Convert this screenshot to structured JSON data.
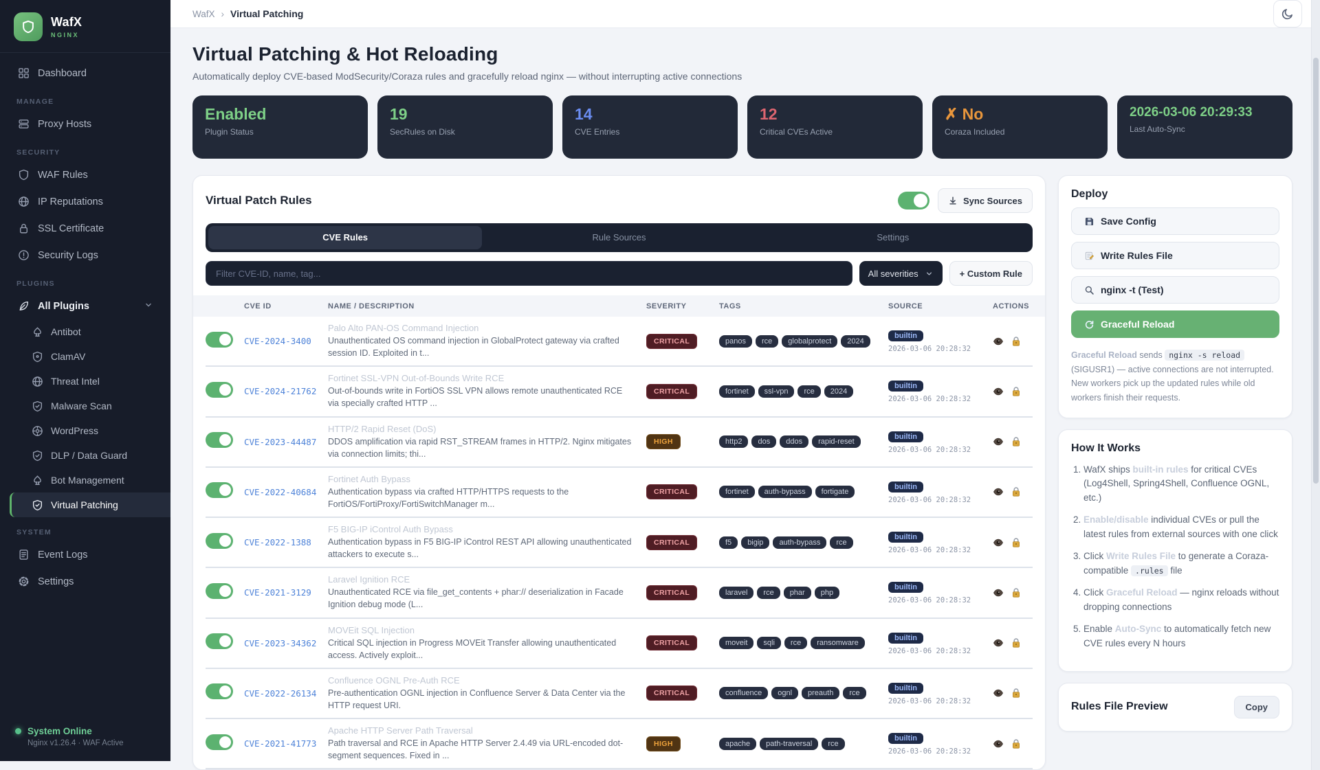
{
  "app": {
    "name": "WafX",
    "subtitle": "NGINX"
  },
  "topbar": {
    "breadcrumb": [
      "WafX",
      "Virtual Patching"
    ]
  },
  "sidebar": {
    "sections": [
      {
        "label": "",
        "items": [
          {
            "icon": "dashboard",
            "label": "Dashboard"
          }
        ]
      },
      {
        "label": "MANAGE",
        "items": [
          {
            "icon": "server",
            "label": "Proxy Hosts"
          }
        ]
      },
      {
        "label": "SECURITY",
        "items": [
          {
            "icon": "shield",
            "label": "WAF Rules"
          },
          {
            "icon": "globe",
            "label": "IP Reputations"
          },
          {
            "icon": "lock",
            "label": "SSL Certificate"
          },
          {
            "icon": "alert",
            "label": "Security Logs"
          }
        ]
      },
      {
        "label": "PLUGINS",
        "items": [
          {
            "icon": "feather",
            "label": "All Plugins",
            "parent": true,
            "chevron": true
          },
          {
            "icon": "spade",
            "label": "Antibot",
            "sub": true
          },
          {
            "icon": "shield-dot",
            "label": "ClamAV",
            "sub": true
          },
          {
            "icon": "globe",
            "label": "Threat Intel",
            "sub": true
          },
          {
            "icon": "shield-check",
            "label": "Malware Scan",
            "sub": true
          },
          {
            "icon": "target",
            "label": "WordPress",
            "sub": true
          },
          {
            "icon": "shield-check",
            "label": "DLP / Data Guard",
            "sub": true
          },
          {
            "icon": "spade",
            "label": "Bot Management",
            "sub": true
          },
          {
            "icon": "shield-check",
            "label": "Virtual Patching",
            "sub": true,
            "active": true
          }
        ]
      },
      {
        "label": "SYSTEM",
        "items": [
          {
            "icon": "doc",
            "label": "Event Logs"
          },
          {
            "icon": "gear",
            "label": "Settings"
          }
        ]
      }
    ],
    "status": {
      "title": "System Online",
      "subtitle": "Nginx v1.26.4 · WAF Active"
    }
  },
  "page": {
    "title": "Virtual Patching & Hot Reloading",
    "subtitle": "Automatically deploy CVE-based ModSecurity/Coraza rules and gracefully reload nginx — without interrupting active connections"
  },
  "stats": [
    {
      "value": "Enabled",
      "label": "Plugin Status",
      "color": "#7ed087"
    },
    {
      "value": "19",
      "label": "SecRules on Disk",
      "color": "#7ed087"
    },
    {
      "value": "14",
      "label": "CVE Entries",
      "color": "#6b8df2"
    },
    {
      "value": "12",
      "label": "Critical CVEs Active",
      "color": "#dd6570"
    },
    {
      "value": "✗ No",
      "label": "Coraza Included",
      "color": "#e8963c"
    },
    {
      "value": "2026-03-06 20:29:33",
      "label": "Last Auto-Sync",
      "color": "#7ed087",
      "small": true
    }
  ],
  "rules_panel": {
    "title": "Virtual Patch Rules",
    "enabled": true,
    "sync_button": "Sync Sources",
    "tabs": [
      {
        "label": "CVE Rules",
        "active": true
      },
      {
        "label": "Rule Sources",
        "active": false
      },
      {
        "label": "Settings",
        "active": false
      }
    ],
    "filter_placeholder": "Filter CVE-ID, name, tag...",
    "severity_select": "All severities",
    "custom_rule_button": "+ Custom Rule",
    "columns": [
      "CVE ID",
      "NAME / DESCRIPTION",
      "SEVERITY",
      "TAGS",
      "SOURCE",
      "ACTIONS"
    ],
    "rows": [
      {
        "enabled": true,
        "cve": "CVE-2024-3400",
        "name": "Palo Alto PAN-OS Command Injection",
        "description": "Unauthenticated OS command injection in GlobalProtect gateway via crafted session ID. Exploited in t...",
        "severity": "CRITICAL",
        "tags": [
          "panos",
          "rce",
          "globalprotect",
          "2024"
        ],
        "source": "builtin",
        "synced": "2026-03-06 20:28:32"
      },
      {
        "enabled": true,
        "cve": "CVE-2024-21762",
        "name": "Fortinet SSL-VPN Out-of-Bounds Write RCE",
        "description": "Out-of-bounds write in FortiOS SSL VPN allows remote unauthenticated RCE via specially crafted HTTP ...",
        "severity": "CRITICAL",
        "tags": [
          "fortinet",
          "ssl-vpn",
          "rce",
          "2024"
        ],
        "source": "builtin",
        "synced": "2026-03-06 20:28:32"
      },
      {
        "enabled": true,
        "cve": "CVE-2023-44487",
        "name": "HTTP/2 Rapid Reset (DoS)",
        "description": "DDOS amplification via rapid RST_STREAM frames in HTTP/2. Nginx mitigates via connection limits; thi...",
        "severity": "HIGH",
        "tags": [
          "http2",
          "dos",
          "ddos",
          "rapid-reset"
        ],
        "source": "builtin",
        "synced": "2026-03-06 20:28:32"
      },
      {
        "enabled": true,
        "cve": "CVE-2022-40684",
        "name": "Fortinet Auth Bypass",
        "description": "Authentication bypass via crafted HTTP/HTTPS requests to the FortiOS/FortiProxy/FortiSwitchManager m...",
        "severity": "CRITICAL",
        "tags": [
          "fortinet",
          "auth-bypass",
          "fortigate"
        ],
        "source": "builtin",
        "synced": "2026-03-06 20:28:32"
      },
      {
        "enabled": true,
        "cve": "CVE-2022-1388",
        "name": "F5 BIG-IP iControl Auth Bypass",
        "description": "Authentication bypass in F5 BIG-IP iControl REST API allowing unauthenticated attackers to execute s...",
        "severity": "CRITICAL",
        "tags": [
          "f5",
          "bigip",
          "auth-bypass",
          "rce"
        ],
        "source": "builtin",
        "synced": "2026-03-06 20:28:32"
      },
      {
        "enabled": true,
        "cve": "CVE-2021-3129",
        "name": "Laravel Ignition RCE",
        "description": "Unauthenticated RCE via file_get_contents + phar:// deserialization in Facade Ignition debug mode (L...",
        "severity": "CRITICAL",
        "tags": [
          "laravel",
          "rce",
          "phar",
          "php"
        ],
        "source": "builtin",
        "synced": "2026-03-06 20:28:32"
      },
      {
        "enabled": true,
        "cve": "CVE-2023-34362",
        "name": "MOVEit SQL Injection",
        "description": "Critical SQL injection in Progress MOVEit Transfer allowing unauthenticated access. Actively exploit...",
        "severity": "CRITICAL",
        "tags": [
          "moveit",
          "sqli",
          "rce",
          "ransomware"
        ],
        "source": "builtin",
        "synced": "2026-03-06 20:28:32"
      },
      {
        "enabled": true,
        "cve": "CVE-2022-26134",
        "name": "Confluence OGNL Pre-Auth RCE",
        "description": "Pre-authentication OGNL injection in Confluence Server & Data Center via the HTTP request URI.",
        "severity": "CRITICAL",
        "tags": [
          "confluence",
          "ognl",
          "preauth",
          "rce"
        ],
        "source": "builtin",
        "synced": "2026-03-06 20:28:32"
      },
      {
        "enabled": true,
        "cve": "CVE-2021-41773",
        "name": "Apache HTTP Server Path Traversal",
        "description": "Path traversal and RCE in Apache HTTP Server 2.4.49 via URL-encoded dot-segment sequences. Fixed in ...",
        "severity": "HIGH",
        "tags": [
          "apache",
          "path-traversal",
          "rce"
        ],
        "source": "builtin",
        "synced": "2026-03-06 20:28:32"
      }
    ]
  },
  "deploy": {
    "title": "Deploy",
    "buttons": [
      {
        "icon": "floppy",
        "label": "Save Config",
        "primary": false
      },
      {
        "icon": "pencil",
        "label": "Write Rules File",
        "primary": false
      },
      {
        "icon": "search",
        "label": "nginx -t (Test)",
        "primary": false
      },
      {
        "icon": "reload",
        "label": "Graceful Reload",
        "primary": true
      }
    ],
    "note_segments": [
      {
        "text": "Graceful Reload",
        "style": "label"
      },
      {
        "text": " sends ",
        "style": ""
      },
      {
        "text": "nginx -s reload",
        "style": "code"
      },
      {
        "text": " (SIGUSR1) — active connections are not interrupted. New workers pick up the updated rules while old workers finish their requests.",
        "style": ""
      }
    ]
  },
  "how_it_works": {
    "title": "How It Works",
    "steps": [
      [
        {
          "text": "WafX ships ",
          "style": ""
        },
        {
          "text": "built-in rules",
          "style": "hl"
        },
        {
          "text": " for critical CVEs (Log4Shell, Spring4Shell, Confluence OGNL, etc.)",
          "style": ""
        }
      ],
      [
        {
          "text": "Enable/disable",
          "style": "hl"
        },
        {
          "text": " individual CVEs or pull the latest rules from external sources with one click",
          "style": ""
        }
      ],
      [
        {
          "text": "Click ",
          "style": ""
        },
        {
          "text": "Write Rules File",
          "style": "hl"
        },
        {
          "text": " to generate a Coraza-compatible ",
          "style": ""
        },
        {
          "text": ".rules",
          "style": "code"
        },
        {
          "text": " file",
          "style": ""
        }
      ],
      [
        {
          "text": "Click ",
          "style": ""
        },
        {
          "text": "Graceful Reload",
          "style": "hl"
        },
        {
          "text": " — nginx reloads without dropping connections",
          "style": ""
        }
      ],
      [
        {
          "text": "Enable ",
          "style": ""
        },
        {
          "text": "Auto-Sync",
          "style": "hl"
        },
        {
          "text": " to automatically fetch new CVE rules every N hours",
          "style": ""
        }
      ]
    ]
  },
  "rules_preview": {
    "title": "Rules File Preview",
    "copy_button": "Copy"
  },
  "colors": {
    "accent_green": "#67b173",
    "critical_text": "#f0a3a6",
    "critical_bg": "#4f1d24",
    "high_text": "#f0a43c",
    "high_bg": "#503413",
    "link_blue": "#4d82d8",
    "sidebar_bg": "#171c29",
    "stat_card_bg": "#222938"
  }
}
